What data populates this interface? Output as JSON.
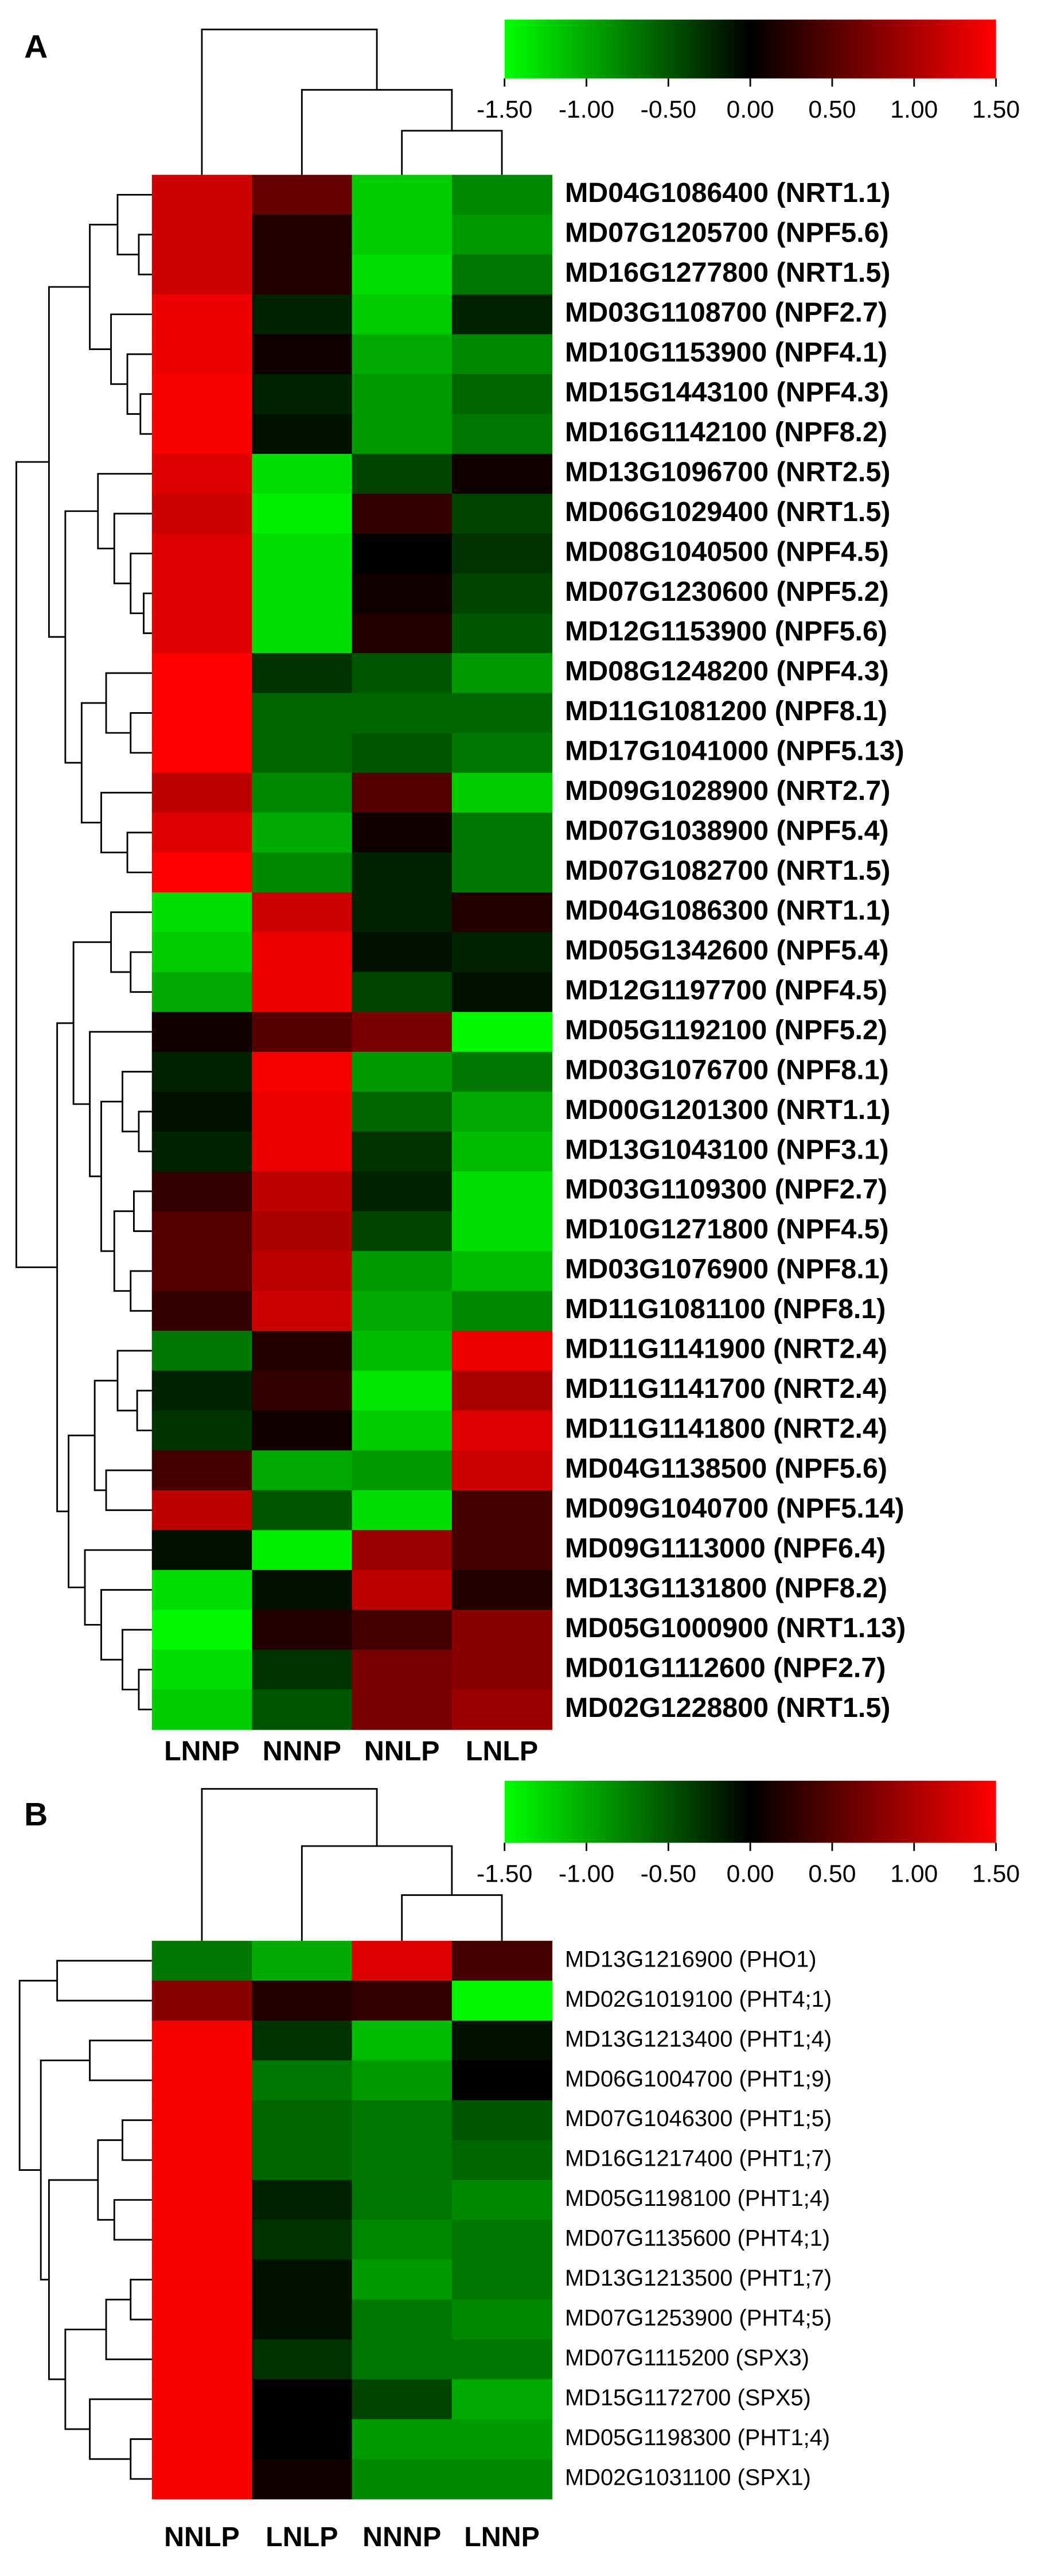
{
  "chart_data": [
    {
      "type": "heatmap",
      "panel_label": "A",
      "x_categories": [
        "LNNP",
        "NNNP",
        "NNLP",
        "LNLP"
      ],
      "y_categories": [
        "MD04G1086400 (NRT1.1)",
        "MD07G1205700 (NPF5.6)",
        "MD16G1277800 (NRT1.5)",
        "MD03G1108700 (NPF2.7)",
        "MD10G1153900 (NPF4.1)",
        "MD15G1443100 (NPF4.3)",
        "MD16G1142100 (NPF8.2)",
        "MD13G1096700 (NRT2.5)",
        "MD06G1029400 (NRT1.5)",
        "MD08G1040500 (NPF4.5)",
        "MD07G1230600 (NPF5.2)",
        "MD12G1153900 (NPF5.6)",
        "MD08G1248200 (NPF4.3)",
        "MD11G1081200 (NPF8.1)",
        "MD17G1041000 (NPF5.13)",
        "MD09G1028900 (NRT2.7)",
        "MD07G1038900 (NPF5.4)",
        "MD07G1082700 (NRT1.5)",
        "MD04G1086300 (NRT1.1)",
        "MD05G1342600 (NPF5.4)",
        "MD12G1197700 (NPF4.5)",
        "MD05G1192100 (NPF5.2)",
        "MD03G1076700 (NPF8.1)",
        "MD00G1201300 (NRT1.1)",
        "MD13G1043100 (NPF3.1)",
        "MD03G1109300 (NPF2.7)",
        "MD10G1271800 (NPF4.5)",
        "MD03G1076900 (NPF8.1)",
        "MD11G1081100 (NPF8.1)",
        "MD11G1141900 (NRT2.4)",
        "MD11G1141700 (NRT2.4)",
        "MD11G1141800 (NRT2.4)",
        "MD04G1138500 (NPF5.6)",
        "MD09G1040700 (NPF5.14)",
        "MD09G1113000 (NPF6.4)",
        "MD13G1131800 (NPF8.2)",
        "MD05G1000900 (NRT1.13)",
        "MD01G1112600 (NPF2.7)",
        "MD02G1228800 (NRT1.5)"
      ],
      "values": [
        [
          1.2,
          0.6,
          -1.2,
          -0.8
        ],
        [
          1.2,
          0.2,
          -1.2,
          -0.9
        ],
        [
          1.2,
          0.2,
          -1.3,
          -0.7
        ],
        [
          1.4,
          -0.2,
          -1.2,
          -0.2
        ],
        [
          1.4,
          0.1,
          -1.0,
          -0.8
        ],
        [
          1.45,
          -0.2,
          -0.9,
          -0.6
        ],
        [
          1.45,
          -0.1,
          -0.9,
          -0.7
        ],
        [
          1.3,
          -1.3,
          -0.4,
          0.1
        ],
        [
          1.2,
          -1.4,
          0.3,
          -0.4
        ],
        [
          1.3,
          -1.3,
          0.0,
          -0.3
        ],
        [
          1.3,
          -1.3,
          0.1,
          -0.4
        ],
        [
          1.3,
          -1.3,
          0.2,
          -0.5
        ],
        [
          1.5,
          -0.3,
          -0.5,
          -0.9
        ],
        [
          1.5,
          -0.6,
          -0.6,
          -0.6
        ],
        [
          1.5,
          -0.6,
          -0.5,
          -0.7
        ],
        [
          1.1,
          -0.8,
          0.5,
          -1.2
        ],
        [
          1.3,
          -1.0,
          0.1,
          -0.7
        ],
        [
          1.5,
          -0.8,
          -0.2,
          -0.7
        ],
        [
          -1.3,
          1.2,
          -0.2,
          0.2
        ],
        [
          -1.2,
          1.4,
          -0.1,
          -0.2
        ],
        [
          -1.0,
          1.4,
          -0.4,
          -0.1
        ],
        [
          0.1,
          0.5,
          0.7,
          -1.45
        ],
        [
          -0.2,
          1.45,
          -0.9,
          -0.7
        ],
        [
          -0.1,
          1.4,
          -0.6,
          -1.0
        ],
        [
          -0.2,
          1.4,
          -0.3,
          -1.1
        ],
        [
          0.3,
          1.1,
          -0.2,
          -1.3
        ],
        [
          0.5,
          1.0,
          -0.4,
          -1.3
        ],
        [
          0.5,
          1.1,
          -0.9,
          -1.1
        ],
        [
          0.3,
          1.2,
          -1.0,
          -0.8
        ],
        [
          -0.7,
          0.2,
          -1.1,
          1.4
        ],
        [
          -0.2,
          0.3,
          -1.35,
          1.0
        ],
        [
          -0.3,
          0.1,
          -1.2,
          1.3
        ],
        [
          0.4,
          -1.0,
          -0.9,
          1.2
        ],
        [
          1.1,
          -0.5,
          -1.3,
          0.4
        ],
        [
          -0.1,
          -1.4,
          0.9,
          0.4
        ],
        [
          -1.3,
          -0.1,
          1.1,
          0.2
        ],
        [
          -1.45,
          0.2,
          0.4,
          0.8
        ],
        [
          -1.3,
          -0.3,
          0.7,
          0.8
        ],
        [
          -1.2,
          -0.5,
          0.7,
          0.9
        ]
      ],
      "colorscale": {
        "colors": [
          "#00ff00",
          "#000000",
          "#ff0000"
        ],
        "range": [
          -1.5,
          1.5
        ],
        "ticks": [
          {
            "value": -1.5,
            "label": "-1.50"
          },
          {
            "value": -1.0,
            "label": "-1.00"
          },
          {
            "value": -0.5,
            "label": "-0.50"
          },
          {
            "value": 0,
            "label": "0.00"
          },
          {
            "value": 0.5,
            "label": "0.50"
          },
          {
            "value": 1.0,
            "label": "1.00"
          },
          {
            "value": 1.5,
            "label": "1.50"
          }
        ]
      }
    },
    {
      "type": "heatmap",
      "panel_label": "B",
      "x_categories": [
        "NNLP",
        "LNLP",
        "NNNP",
        "LNNP"
      ],
      "y_categories": [
        "MD13G1216900 (PHO1)",
        "MD02G1019100 (PHT4;1)",
        "MD13G1213400 (PHT1;4)",
        "MD06G1004700 (PHT1;9)",
        "MD07G1046300 (PHT1;5)",
        "MD16G1217400 (PHT1;7)",
        "MD05G1198100 (PHT1;4)",
        "MD07G1135600 (PHT4;1)",
        "MD13G1213500 (PHT1;7)",
        "MD07G1253900 (PHT4;5)",
        "MD07G1115200 (SPX3)",
        "MD15G1172700 (SPX5)",
        "MD05G1198300 (PHT1;4)",
        "MD02G1031100 (SPX1)"
      ],
      "values": [
        [
          -0.7,
          -1.0,
          1.3,
          0.4
        ],
        [
          0.8,
          0.2,
          0.3,
          -1.45
        ],
        [
          1.45,
          -0.3,
          -1.1,
          -0.1
        ],
        [
          1.45,
          -0.7,
          -0.9,
          0.0
        ],
        [
          1.45,
          -0.6,
          -0.7,
          -0.5
        ],
        [
          1.45,
          -0.6,
          -0.7,
          -0.6
        ],
        [
          1.45,
          -0.2,
          -0.7,
          -0.8
        ],
        [
          1.45,
          -0.3,
          -0.8,
          -0.7
        ],
        [
          1.45,
          -0.1,
          -0.9,
          -0.7
        ],
        [
          1.45,
          -0.1,
          -0.7,
          -0.8
        ],
        [
          1.45,
          -0.3,
          -0.7,
          -0.7
        ],
        [
          1.45,
          0.0,
          -0.4,
          -1.0
        ],
        [
          1.45,
          0.0,
          -0.9,
          -0.9
        ],
        [
          1.45,
          0.1,
          -0.8,
          -0.8
        ]
      ],
      "colorscale": {
        "colors": [
          "#00ff00",
          "#000000",
          "#ff0000"
        ],
        "range": [
          -1.5,
          1.5
        ],
        "ticks": [
          {
            "value": -1.5,
            "label": "-1.50"
          },
          {
            "value": -1.0,
            "label": "-1.00"
          },
          {
            "value": -0.5,
            "label": "-0.50"
          },
          {
            "value": 0,
            "label": "0.00"
          },
          {
            "value": 0.5,
            "label": "0.50"
          },
          {
            "value": 1.0,
            "label": "1.00"
          },
          {
            "value": 1.5,
            "label": "1.50"
          }
        ]
      }
    }
  ]
}
